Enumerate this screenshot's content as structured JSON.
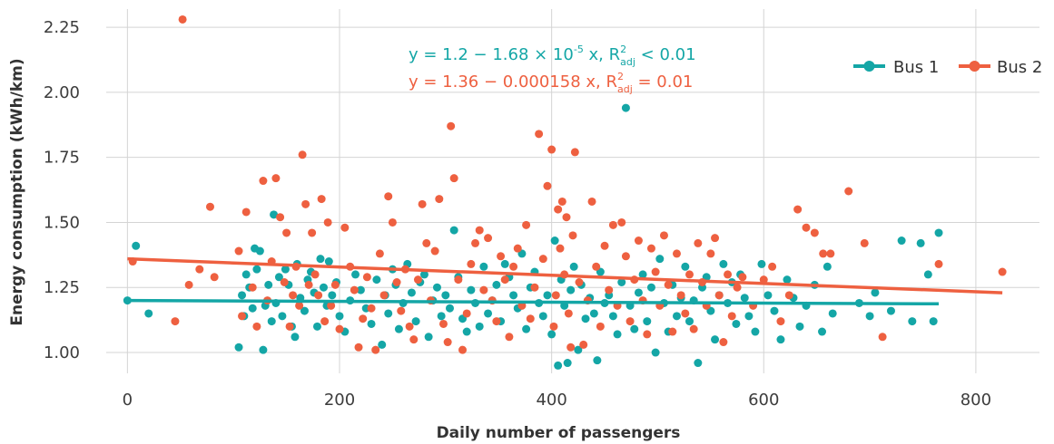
{
  "chart_data": {
    "type": "scatter",
    "xlabel": "Daily number of passengers",
    "ylabel": "Energy consumption (kWh/km)",
    "xlim": [
      -20,
      860
    ],
    "ylim": [
      0.92,
      2.32
    ],
    "x_ticks": [
      0,
      200,
      400,
      600,
      800
    ],
    "y_ticks": [
      1.0,
      1.25,
      1.5,
      1.75,
      2.0,
      2.25
    ],
    "x_tick_labels": [
      "0",
      "200",
      "400",
      "600",
      "800"
    ],
    "y_tick_labels": [
      "1.00",
      "1.25",
      "1.50",
      "1.75",
      "2.00",
      "2.25"
    ],
    "grid": true,
    "legend_position": "top-right",
    "series": [
      {
        "name": "Bus 1",
        "color": "#14a6a6",
        "fit": {
          "intercept": 1.2,
          "slope": -1.68e-05,
          "x_range": [
            0,
            765
          ]
        },
        "equation": {
          "main": "y = 1.2 − 1.68 × 10",
          "sup": "-5",
          "mid": " x, R",
          "r_sup": "2",
          "r_sub": "adj",
          "end": " < 0.01"
        },
        "points": [
          [
            0,
            1.2
          ],
          [
            8,
            1.41
          ],
          [
            20,
            1.15
          ],
          [
            105,
            1.02
          ],
          [
            108,
            1.22
          ],
          [
            110,
            1.14
          ],
          [
            112,
            1.3
          ],
          [
            115,
            1.25
          ],
          [
            118,
            1.17
          ],
          [
            120,
            1.4
          ],
          [
            122,
            1.32
          ],
          [
            125,
            1.39
          ],
          [
            128,
            1.01
          ],
          [
            130,
            1.18
          ],
          [
            133,
            1.26
          ],
          [
            136,
            1.12
          ],
          [
            138,
            1.53
          ],
          [
            140,
            1.19
          ],
          [
            143,
            1.29
          ],
          [
            146,
            1.14
          ],
          [
            149,
            1.32
          ],
          [
            152,
            1.26
          ],
          [
            155,
            1.1
          ],
          [
            158,
            1.06
          ],
          [
            160,
            1.34
          ],
          [
            163,
            1.21
          ],
          [
            167,
            1.16
          ],
          [
            170,
            1.28
          ],
          [
            173,
            1.31
          ],
          [
            176,
            1.23
          ],
          [
            179,
            1.1
          ],
          [
            182,
            1.36
          ],
          [
            185,
            1.25
          ],
          [
            188,
            1.18
          ],
          [
            190,
            1.35
          ],
          [
            193,
            1.22
          ],
          [
            197,
            1.27
          ],
          [
            200,
            1.14
          ],
          [
            205,
            1.08
          ],
          [
            210,
            1.2
          ],
          [
            215,
            1.3
          ],
          [
            220,
            1.24
          ],
          [
            225,
            1.17
          ],
          [
            230,
            1.11
          ],
          [
            235,
            1.28
          ],
          [
            240,
            1.03
          ],
          [
            243,
            1.22
          ],
          [
            246,
            1.15
          ],
          [
            250,
            1.32
          ],
          [
            253,
            1.26
          ],
          [
            256,
            1.09
          ],
          [
            260,
            1.19
          ],
          [
            264,
            1.34
          ],
          [
            268,
            1.23
          ],
          [
            272,
            1.12
          ],
          [
            276,
            1.27
          ],
          [
            280,
            1.3
          ],
          [
            284,
            1.06
          ],
          [
            288,
            1.2
          ],
          [
            292,
            1.25
          ],
          [
            296,
            1.14
          ],
          [
            300,
            1.22
          ],
          [
            304,
            1.17
          ],
          [
            308,
            1.47
          ],
          [
            312,
            1.29
          ],
          [
            316,
            1.13
          ],
          [
            320,
            1.08
          ],
          [
            324,
            1.24
          ],
          [
            328,
            1.19
          ],
          [
            332,
            1.1
          ],
          [
            336,
            1.33
          ],
          [
            340,
            1.15
          ],
          [
            344,
            1.2
          ],
          [
            348,
            1.26
          ],
          [
            352,
            1.12
          ],
          [
            356,
            1.34
          ],
          [
            360,
            1.29
          ],
          [
            364,
            1.22
          ],
          [
            368,
            1.17
          ],
          [
            372,
            1.38
          ],
          [
            376,
            1.09
          ],
          [
            380,
            1.25
          ],
          [
            384,
            1.31
          ],
          [
            388,
            1.19
          ],
          [
            392,
            1.14
          ],
          [
            396,
            1.22
          ],
          [
            400,
            1.07
          ],
          [
            403,
            1.43
          ],
          [
            406,
            0.95
          ],
          [
            409,
            1.28
          ],
          [
            412,
            1.18
          ],
          [
            415,
            0.96
          ],
          [
            418,
            1.24
          ],
          [
            421,
            1.33
          ],
          [
            425,
            1.01
          ],
          [
            428,
            1.26
          ],
          [
            432,
            1.13
          ],
          [
            436,
            1.21
          ],
          [
            440,
            1.15
          ],
          [
            443,
            0.97
          ],
          [
            446,
            1.31
          ],
          [
            450,
            1.19
          ],
          [
            454,
            1.22
          ],
          [
            458,
            1.14
          ],
          [
            462,
            1.07
          ],
          [
            466,
            1.27
          ],
          [
            470,
            1.94
          ],
          [
            474,
            1.18
          ],
          [
            478,
            1.09
          ],
          [
            482,
            1.23
          ],
          [
            486,
            1.3
          ],
          [
            490,
            1.12
          ],
          [
            494,
            1.25
          ],
          [
            498,
            1.0
          ],
          [
            502,
            1.36
          ],
          [
            506,
            1.19
          ],
          [
            510,
            1.08
          ],
          [
            514,
            1.26
          ],
          [
            518,
            1.14
          ],
          [
            522,
            1.21
          ],
          [
            526,
            1.33
          ],
          [
            530,
            1.12
          ],
          [
            534,
            1.2
          ],
          [
            538,
            0.96
          ],
          [
            542,
            1.25
          ],
          [
            546,
            1.29
          ],
          [
            550,
            1.16
          ],
          [
            554,
            1.05
          ],
          [
            558,
            1.22
          ],
          [
            562,
            1.34
          ],
          [
            566,
            1.19
          ],
          [
            570,
            1.27
          ],
          [
            574,
            1.11
          ],
          [
            578,
            1.3
          ],
          [
            582,
            1.21
          ],
          [
            586,
            1.14
          ],
          [
            592,
            1.08
          ],
          [
            598,
            1.34
          ],
          [
            604,
            1.22
          ],
          [
            610,
            1.16
          ],
          [
            616,
            1.05
          ],
          [
            622,
            1.28
          ],
          [
            628,
            1.21
          ],
          [
            634,
            1.1
          ],
          [
            640,
            1.18
          ],
          [
            648,
            1.26
          ],
          [
            655,
            1.08
          ],
          [
            660,
            1.33
          ],
          [
            665,
            1.15
          ],
          [
            690,
            1.19
          ],
          [
            700,
            1.14
          ],
          [
            705,
            1.23
          ],
          [
            720,
            1.16
          ],
          [
            730,
            1.43
          ],
          [
            740,
            1.12
          ],
          [
            748,
            1.42
          ],
          [
            755,
            1.3
          ],
          [
            760,
            1.12
          ],
          [
            765,
            1.46
          ]
        ]
      },
      {
        "name": "Bus 2",
        "color": "#ee6040",
        "fit": {
          "intercept": 1.36,
          "slope": -0.000158,
          "x_range": [
            0,
            825
          ]
        },
        "equation": {
          "main": "y = 1.36 − 0.000158 x, R",
          "r_sup": "2",
          "r_sub": "adj",
          "end": " = 0.01"
        },
        "points": [
          [
            5,
            1.35
          ],
          [
            45,
            1.12
          ],
          [
            52,
            2.28
          ],
          [
            58,
            1.26
          ],
          [
            68,
            1.32
          ],
          [
            78,
            1.56
          ],
          [
            82,
            1.29
          ],
          [
            105,
            1.39
          ],
          [
            108,
            1.14
          ],
          [
            112,
            1.54
          ],
          [
            118,
            1.25
          ],
          [
            122,
            1.1
          ],
          [
            128,
            1.66
          ],
          [
            132,
            1.2
          ],
          [
            136,
            1.35
          ],
          [
            140,
            1.67
          ],
          [
            144,
            1.52
          ],
          [
            148,
            1.27
          ],
          [
            150,
            1.46
          ],
          [
            153,
            1.1
          ],
          [
            156,
            1.22
          ],
          [
            159,
            1.33
          ],
          [
            162,
            1.18
          ],
          [
            165,
            1.76
          ],
          [
            168,
            1.57
          ],
          [
            171,
            1.26
          ],
          [
            174,
            1.46
          ],
          [
            177,
            1.3
          ],
          [
            180,
            1.22
          ],
          [
            183,
            1.59
          ],
          [
            186,
            1.12
          ],
          [
            189,
            1.5
          ],
          [
            192,
            1.18
          ],
          [
            196,
            1.26
          ],
          [
            200,
            1.09
          ],
          [
            205,
            1.48
          ],
          [
            210,
            1.33
          ],
          [
            214,
            1.24
          ],
          [
            218,
            1.02
          ],
          [
            222,
            1.13
          ],
          [
            226,
            1.29
          ],
          [
            230,
            1.17
          ],
          [
            234,
            1.01
          ],
          [
            238,
            1.38
          ],
          [
            242,
            1.22
          ],
          [
            246,
            1.6
          ],
          [
            250,
            1.5
          ],
          [
            254,
            1.27
          ],
          [
            258,
            1.16
          ],
          [
            262,
            1.32
          ],
          [
            266,
            1.1
          ],
          [
            270,
            1.05
          ],
          [
            274,
            1.28
          ],
          [
            278,
            1.57
          ],
          [
            282,
            1.42
          ],
          [
            286,
            1.2
          ],
          [
            290,
            1.39
          ],
          [
            294,
            1.59
          ],
          [
            298,
            1.11
          ],
          [
            302,
            1.04
          ],
          [
            305,
            1.87
          ],
          [
            308,
            1.67
          ],
          [
            312,
            1.28
          ],
          [
            316,
            1.01
          ],
          [
            320,
            1.15
          ],
          [
            324,
            1.34
          ],
          [
            328,
            1.42
          ],
          [
            332,
            1.47
          ],
          [
            336,
            1.24
          ],
          [
            340,
            1.44
          ],
          [
            344,
            1.2
          ],
          [
            348,
            1.12
          ],
          [
            352,
            1.37
          ],
          [
            356,
            1.28
          ],
          [
            360,
            1.06
          ],
          [
            364,
            1.33
          ],
          [
            368,
            1.4
          ],
          [
            372,
            1.18
          ],
          [
            376,
            1.49
          ],
          [
            380,
            1.13
          ],
          [
            384,
            1.25
          ],
          [
            388,
            1.84
          ],
          [
            392,
            1.36
          ],
          [
            396,
            1.64
          ],
          [
            400,
            1.78
          ],
          [
            402,
            1.1
          ],
          [
            404,
            1.22
          ],
          [
            406,
            1.55
          ],
          [
            408,
            1.4
          ],
          [
            410,
            1.58
          ],
          [
            412,
            1.3
          ],
          [
            414,
            1.52
          ],
          [
            416,
            1.15
          ],
          [
            418,
            1.02
          ],
          [
            420,
            1.45
          ],
          [
            422,
            1.77
          ],
          [
            426,
            1.27
          ],
          [
            430,
            1.03
          ],
          [
            434,
            1.2
          ],
          [
            438,
            1.58
          ],
          [
            442,
            1.33
          ],
          [
            446,
            1.1
          ],
          [
            450,
            1.41
          ],
          [
            454,
            1.24
          ],
          [
            458,
            1.49
          ],
          [
            462,
            1.18
          ],
          [
            466,
            1.5
          ],
          [
            470,
            1.37
          ],
          [
            474,
            1.12
          ],
          [
            478,
            1.28
          ],
          [
            482,
            1.43
          ],
          [
            486,
            1.2
          ],
          [
            490,
            1.07
          ],
          [
            494,
            1.4
          ],
          [
            498,
            1.31
          ],
          [
            502,
            1.18
          ],
          [
            506,
            1.45
          ],
          [
            510,
            1.26
          ],
          [
            514,
            1.08
          ],
          [
            518,
            1.38
          ],
          [
            522,
            1.22
          ],
          [
            526,
            1.15
          ],
          [
            530,
            1.3
          ],
          [
            534,
            1.09
          ],
          [
            538,
            1.42
          ],
          [
            542,
            1.27
          ],
          [
            546,
            1.18
          ],
          [
            550,
            1.38
          ],
          [
            554,
            1.44
          ],
          [
            558,
            1.22
          ],
          [
            562,
            1.04
          ],
          [
            566,
            1.3
          ],
          [
            570,
            1.14
          ],
          [
            575,
            1.25
          ],
          [
            580,
            1.29
          ],
          [
            590,
            1.18
          ],
          [
            600,
            1.28
          ],
          [
            608,
            1.33
          ],
          [
            616,
            1.12
          ],
          [
            624,
            1.22
          ],
          [
            632,
            1.55
          ],
          [
            640,
            1.48
          ],
          [
            648,
            1.46
          ],
          [
            656,
            1.38
          ],
          [
            663,
            1.38
          ],
          [
            680,
            1.62
          ],
          [
            695,
            1.42
          ],
          [
            712,
            1.06
          ],
          [
            765,
            1.34
          ],
          [
            825,
            1.31
          ]
        ]
      }
    ]
  }
}
